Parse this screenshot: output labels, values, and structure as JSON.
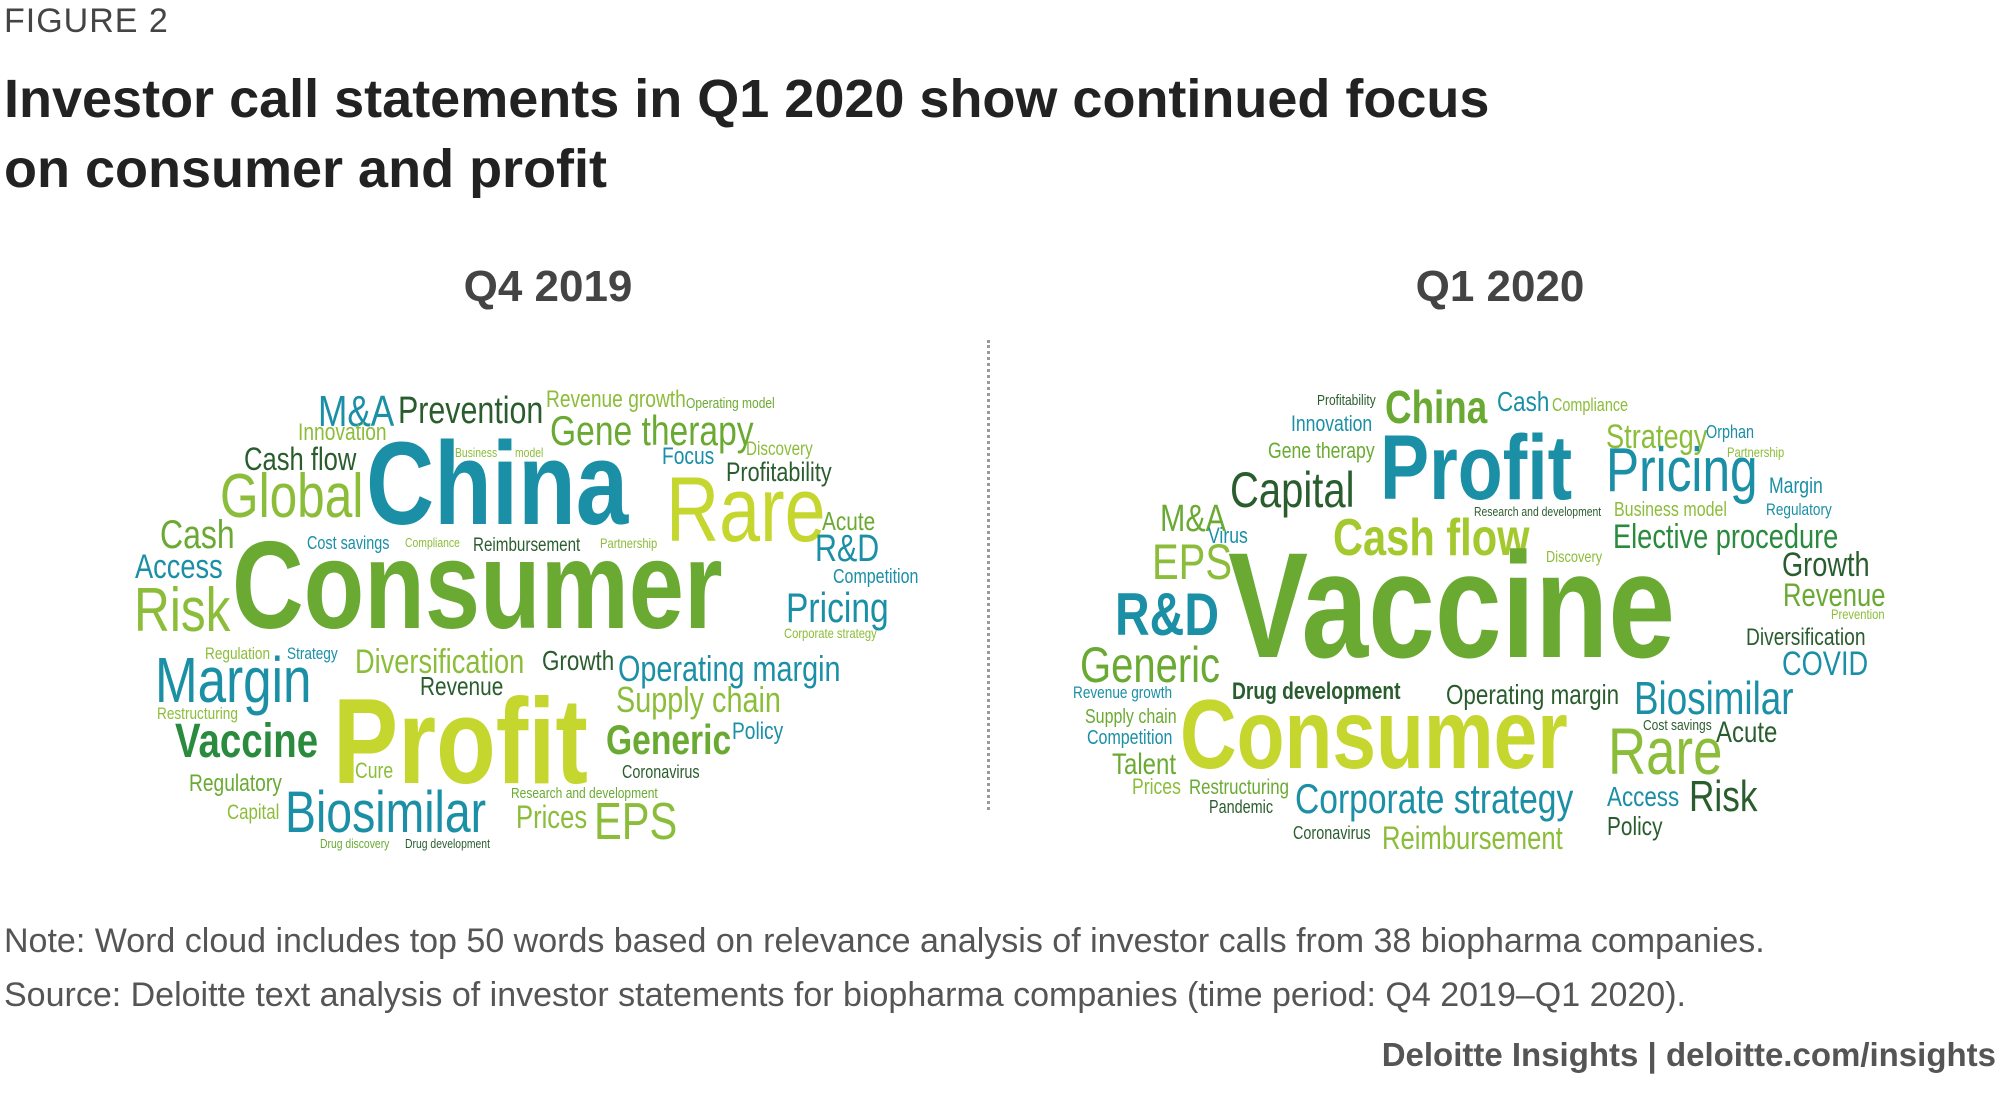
{
  "figure_label": "FIGURE 2",
  "title": "Investor call statements in Q1 2020 show continued focus on consumer and profit",
  "panels": [
    {
      "title": "Q4 2019",
      "words": [
        {
          "text": "M&A",
          "size": 44,
          "color": "#1a8fa6"
        },
        {
          "text": "Prevention",
          "size": 38,
          "color": "#2a5d2e"
        },
        {
          "text": "Revenue growth",
          "size": 24,
          "color": "#8cbd3a"
        },
        {
          "text": "Operating model",
          "size": 15,
          "color": "#6aaa32"
        },
        {
          "text": "Innovation",
          "size": 24,
          "color": "#8cbd3a"
        },
        {
          "text": "Gene therapy",
          "size": 42,
          "color": "#6aaa32"
        },
        {
          "text": "Cash flow",
          "size": 32,
          "color": "#2a5d2e"
        },
        {
          "text": "Business",
          "size": 13,
          "color": "#8cbd3a"
        },
        {
          "text": "model",
          "size": 13,
          "color": "#8cbd3a"
        },
        {
          "text": "Focus",
          "size": 24,
          "color": "#1a8fa6"
        },
        {
          "text": "Discovery",
          "size": 19,
          "color": "#8cbd3a"
        },
        {
          "text": "China",
          "size": 118,
          "color": "#1a8fa6",
          "bold": true
        },
        {
          "text": "Profitability",
          "size": 27,
          "color": "#2a5d2e"
        },
        {
          "text": "Global",
          "size": 62,
          "color": "#8cbd3a"
        },
        {
          "text": "Rare",
          "size": 92,
          "color": "#c5d62f"
        },
        {
          "text": "Acute",
          "size": 26,
          "color": "#6aaa32"
        },
        {
          "text": "Cash",
          "size": 40,
          "color": "#6aaa32"
        },
        {
          "text": "Cost savings",
          "size": 18,
          "color": "#1a8fa6"
        },
        {
          "text": "Compliance",
          "size": 13,
          "color": "#8cbd3a"
        },
        {
          "text": "Reimbursement",
          "size": 19,
          "color": "#2a5d2e"
        },
        {
          "text": "Partnership",
          "size": 14,
          "color": "#8cbd3a"
        },
        {
          "text": "R&D",
          "size": 38,
          "color": "#1a8fa6"
        },
        {
          "text": "Access",
          "size": 34,
          "color": "#1a8fa6"
        },
        {
          "text": "Consumer",
          "size": 124,
          "color": "#6aaa32",
          "bold": true
        },
        {
          "text": "Competition",
          "size": 20,
          "color": "#1a8fa6"
        },
        {
          "text": "Risk",
          "size": 62,
          "color": "#8cbd3a"
        },
        {
          "text": "Pricing",
          "size": 42,
          "color": "#1a8fa6"
        },
        {
          "text": "Corporate strategy",
          "size": 14,
          "color": "#8cbd3a"
        },
        {
          "text": "Regulation",
          "size": 17,
          "color": "#8cbd3a"
        },
        {
          "text": "Strategy",
          "size": 17,
          "color": "#1a8fa6"
        },
        {
          "text": "Margin",
          "size": 64,
          "color": "#1a8fa6"
        },
        {
          "text": "Diversification",
          "size": 34,
          "color": "#8cbd3a"
        },
        {
          "text": "Growth",
          "size": 28,
          "color": "#2a5d2e"
        },
        {
          "text": "Operating margin",
          "size": 36,
          "color": "#1a8fa6"
        },
        {
          "text": "Revenue",
          "size": 26,
          "color": "#2a5d2e"
        },
        {
          "text": "Restructuring",
          "size": 17,
          "color": "#8cbd3a"
        },
        {
          "text": "Supply chain",
          "size": 36,
          "color": "#8cbd3a"
        },
        {
          "text": "Vaccine",
          "size": 48,
          "color": "#2a8a3e",
          "bold": true
        },
        {
          "text": "Profit",
          "size": 122,
          "color": "#c5d62f",
          "bold": true
        },
        {
          "text": "Generic",
          "size": 42,
          "color": "#6aaa32",
          "bold": true
        },
        {
          "text": "Policy",
          "size": 24,
          "color": "#1a8fa6"
        },
        {
          "text": "Regulatory",
          "size": 24,
          "color": "#6aaa32"
        },
        {
          "text": "Cure",
          "size": 22,
          "color": "#8cbd3a"
        },
        {
          "text": "Coronavirus",
          "size": 18,
          "color": "#2a5d2e"
        },
        {
          "text": "Research and development",
          "size": 15,
          "color": "#6aaa32"
        },
        {
          "text": "Capital",
          "size": 21,
          "color": "#8cbd3a"
        },
        {
          "text": "Biosimilar",
          "size": 58,
          "color": "#1a8fa6"
        },
        {
          "text": "Prices",
          "size": 32,
          "color": "#8cbd3a"
        },
        {
          "text": "EPS",
          "size": 52,
          "color": "#8cbd3a"
        },
        {
          "text": "Drug discovery",
          "size": 13,
          "color": "#6aaa32"
        },
        {
          "text": "Drug development",
          "size": 13,
          "color": "#2a5d2e"
        }
      ]
    },
    {
      "title": "Q1 2020",
      "words": [
        {
          "text": "Profitability",
          "size": 15,
          "color": "#2a5d2e"
        },
        {
          "text": "China",
          "size": 46,
          "color": "#6aaa32",
          "bold": true
        },
        {
          "text": "Cash",
          "size": 28,
          "color": "#1a8fa6"
        },
        {
          "text": "Compliance",
          "size": 18,
          "color": "#8cbd3a"
        },
        {
          "text": "Innovation",
          "size": 22,
          "color": "#1a8fa6"
        },
        {
          "text": "Strategy",
          "size": 34,
          "color": "#8cbd3a"
        },
        {
          "text": "Orphan",
          "size": 18,
          "color": "#1a8fa6"
        },
        {
          "text": "Gene therapy",
          "size": 22,
          "color": "#6aaa32"
        },
        {
          "text": "Profit",
          "size": 92,
          "color": "#1a8fa6",
          "bold": true
        },
        {
          "text": "Partnership",
          "size": 14,
          "color": "#8cbd3a"
        },
        {
          "text": "Pricing",
          "size": 62,
          "color": "#1a8fa6"
        },
        {
          "text": "Capital",
          "size": 50,
          "color": "#2a5d2e"
        },
        {
          "text": "Margin",
          "size": 22,
          "color": "#1a8fa6"
        },
        {
          "text": "M&A",
          "size": 38,
          "color": "#6aaa32"
        },
        {
          "text": "Research and development",
          "size": 13,
          "color": "#2a5d2e"
        },
        {
          "text": "Business model",
          "size": 20,
          "color": "#8cbd3a"
        },
        {
          "text": "Regulatory",
          "size": 17,
          "color": "#1a8fa6"
        },
        {
          "text": "Virus",
          "size": 22,
          "color": "#1a8fa6"
        },
        {
          "text": "Cash flow",
          "size": 52,
          "color": "#a3c92e",
          "bold": true
        },
        {
          "text": "Discovery",
          "size": 16,
          "color": "#8cbd3a"
        },
        {
          "text": "Elective procedure",
          "size": 34,
          "color": "#2a8a3e"
        },
        {
          "text": "EPS",
          "size": 50,
          "color": "#8cbd3a"
        },
        {
          "text": "Growth",
          "size": 34,
          "color": "#2a5d2e"
        },
        {
          "text": "Vaccine",
          "size": 150,
          "color": "#6aaa32",
          "bold": true
        },
        {
          "text": "Revenue",
          "size": 32,
          "color": "#6aaa32"
        },
        {
          "text": "R&D",
          "size": 60,
          "color": "#1a8fa6",
          "bold": true
        },
        {
          "text": "Prevention",
          "size": 14,
          "color": "#8cbd3a"
        },
        {
          "text": "Diversification",
          "size": 24,
          "color": "#2a5d2e"
        },
        {
          "text": "Generic",
          "size": 50,
          "color": "#6aaa32"
        },
        {
          "text": "COVID",
          "size": 34,
          "color": "#1a8fa6"
        },
        {
          "text": "Drug development",
          "size": 24,
          "color": "#2a5d2e",
          "bold": true
        },
        {
          "text": "Operating margin",
          "size": 28,
          "color": "#2a5d2e"
        },
        {
          "text": "Biosimilar",
          "size": 46,
          "color": "#1a8fa6"
        },
        {
          "text": "Revenue growth",
          "size": 17,
          "color": "#1a8fa6"
        },
        {
          "text": "Supply chain",
          "size": 20,
          "color": "#6aaa32"
        },
        {
          "text": "Consumer",
          "size": 98,
          "color": "#c5d62f",
          "bold": true
        },
        {
          "text": "Cost savings",
          "size": 15,
          "color": "#2a5d2e"
        },
        {
          "text": "Acute",
          "size": 30,
          "color": "#2a5d2e"
        },
        {
          "text": "Competition",
          "size": 20,
          "color": "#1a8fa6"
        },
        {
          "text": "Rare",
          "size": 66,
          "color": "#8cbd3a"
        },
        {
          "text": "Talent",
          "size": 30,
          "color": "#6aaa32"
        },
        {
          "text": "Prices",
          "size": 22,
          "color": "#8cbd3a"
        },
        {
          "text": "Restructuring",
          "size": 21,
          "color": "#6aaa32"
        },
        {
          "text": "Corporate strategy",
          "size": 42,
          "color": "#1a8fa6"
        },
        {
          "text": "Access",
          "size": 28,
          "color": "#1a8fa6"
        },
        {
          "text": "Risk",
          "size": 44,
          "color": "#2a5d2e"
        },
        {
          "text": "Pandemic",
          "size": 18,
          "color": "#2a5d2e"
        },
        {
          "text": "Policy",
          "size": 26,
          "color": "#2a5d2e"
        },
        {
          "text": "Coronavirus",
          "size": 18,
          "color": "#2a5d2e"
        },
        {
          "text": "Reimbursement",
          "size": 32,
          "color": "#8cbd3a"
        }
      ]
    }
  ],
  "note": "Note: Word cloud includes top 50 words based on relevance analysis of investor calls from 38 biopharma companies.",
  "source": "Source: Deloitte text analysis of investor statements for biopharma companies (time period: Q4 2019–Q1 2020).",
  "credit": "Deloitte Insights | deloitte.com/insights"
}
